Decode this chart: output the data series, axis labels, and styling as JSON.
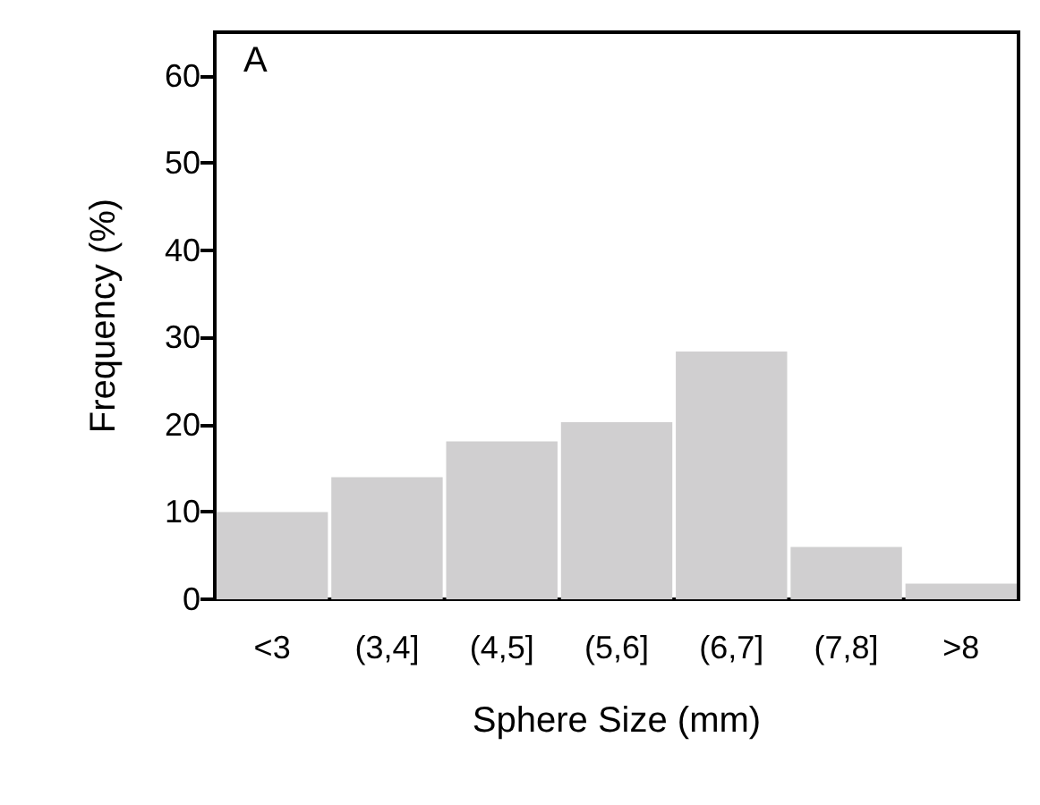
{
  "chart_data": {
    "type": "bar",
    "xlabel": "Sphere Size (mm)",
    "ylabel": "Frequency (%)",
    "annotations": [
      "A"
    ],
    "categories": [
      "<3",
      "(3,4]",
      "(4,5]",
      "(5,6]",
      "(6,7]",
      "(7,8]",
      ">8"
    ],
    "values": [
      10,
      14,
      18.1,
      20.3,
      28.4,
      6,
      1.8
    ],
    "color": "#d0cfd0",
    "ylim": [
      0,
      65
    ],
    "yticks": [
      0,
      10,
      20,
      30,
      40,
      50,
      60
    ],
    "grid": false
  }
}
